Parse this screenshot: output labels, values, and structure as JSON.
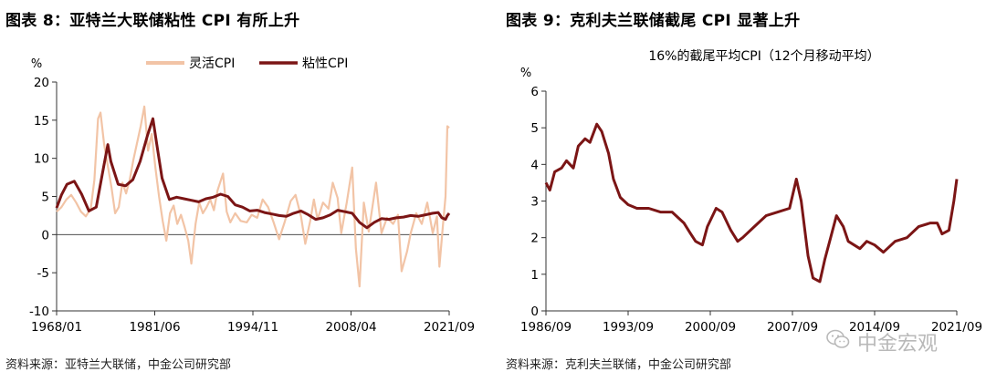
{
  "left": {
    "title": "图表 8：亚特兰大联储粘性 CPI 有所上升",
    "source": "资料来源：亚特兰大联储，中金公司研究部"
  },
  "right": {
    "title": "图表 9：克利夫兰联储截尾 CPI 显著上升",
    "source": "资料来源：克利夫兰联储，中金公司研究部"
  },
  "watermark": "中金宏观",
  "colors": {
    "flexible": "#f2c4a6",
    "sticky": "#7b1515",
    "trimmed": "#7b1515",
    "axis": "#333333"
  },
  "chart_data": [
    {
      "type": "line",
      "title": "",
      "ylabel": "%",
      "xlabel": "",
      "ylim": [
        -10,
        20
      ],
      "yticks": [
        "20",
        "15",
        "10",
        "5",
        "0",
        "-5",
        "-10"
      ],
      "xticks": [
        "1968/01",
        "1981/06",
        "1994/11",
        "2008/04",
        "2021/09"
      ],
      "x_range": [
        "1968/01",
        "2021/09"
      ],
      "legend_position": "top-center",
      "series": [
        {
          "name": "灵活CPI",
          "color": "#f2c4a6",
          "points": [
            [
              "1968/01",
              3.0
            ],
            [
              "1968/09",
              3.6
            ],
            [
              "1969/05",
              4.6
            ],
            [
              "1970/01",
              5.2
            ],
            [
              "1970/09",
              4.2
            ],
            [
              "1971/05",
              3.0
            ],
            [
              "1972/01",
              2.4
            ],
            [
              "1972/09",
              3.4
            ],
            [
              "1973/03",
              7.2
            ],
            [
              "1973/09",
              15.2
            ],
            [
              "1974/01",
              16.0
            ],
            [
              "1974/07",
              11.8
            ],
            [
              "1975/01",
              9.0
            ],
            [
              "1975/07",
              6.2
            ],
            [
              "1976/01",
              2.8
            ],
            [
              "1976/07",
              3.6
            ],
            [
              "1977/01",
              6.8
            ],
            [
              "1977/07",
              5.4
            ],
            [
              "1978/01",
              7.2
            ],
            [
              "1978/07",
              9.8
            ],
            [
              "1979/01",
              12.0
            ],
            [
              "1979/07",
              14.2
            ],
            [
              "1980/01",
              16.8
            ],
            [
              "1980/07",
              11.0
            ],
            [
              "1981/01",
              13.2
            ],
            [
              "1981/07",
              8.8
            ],
            [
              "1982/01",
              5.0
            ],
            [
              "1982/07",
              1.8
            ],
            [
              "1983/01",
              -0.8
            ],
            [
              "1983/07",
              2.8
            ],
            [
              "1984/01",
              3.8
            ],
            [
              "1984/07",
              1.4
            ],
            [
              "1985/01",
              2.6
            ],
            [
              "1985/07",
              1.0
            ],
            [
              "1986/01",
              -0.8
            ],
            [
              "1986/06",
              -3.8
            ],
            [
              "1987/01",
              1.4
            ],
            [
              "1987/07",
              4.2
            ],
            [
              "1988/01",
              2.8
            ],
            [
              "1988/07",
              3.6
            ],
            [
              "1989/01",
              4.6
            ],
            [
              "1989/07",
              3.2
            ],
            [
              "1990/01",
              5.8
            ],
            [
              "1990/10",
              8.0
            ],
            [
              "1991/04",
              3.0
            ],
            [
              "1991/10",
              1.6
            ],
            [
              "1992/06",
              2.8
            ],
            [
              "1993/03",
              1.8
            ],
            [
              "1994/01",
              1.6
            ],
            [
              "1994/09",
              2.6
            ],
            [
              "1995/06",
              2.2
            ],
            [
              "1996/03",
              4.6
            ],
            [
              "1996/12",
              3.6
            ],
            [
              "1997/09",
              1.6
            ],
            [
              "1998/06",
              -0.6
            ],
            [
              "1999/03",
              1.6
            ],
            [
              "2000/01",
              4.4
            ],
            [
              "2000/09",
              5.2
            ],
            [
              "2001/06",
              2.4
            ],
            [
              "2002/01",
              -1.2
            ],
            [
              "2002/09",
              1.8
            ],
            [
              "2003/03",
              4.6
            ],
            [
              "2003/09",
              2.0
            ],
            [
              "2004/06",
              4.2
            ],
            [
              "2005/03",
              3.4
            ],
            [
              "2005/10",
              6.8
            ],
            [
              "2006/06",
              4.8
            ],
            [
              "2006/12",
              0.2
            ],
            [
              "2007/09",
              4.2
            ],
            [
              "2008/06",
              8.8
            ],
            [
              "2008/12",
              -1.8
            ],
            [
              "2009/06",
              -6.8
            ],
            [
              "2010/01",
              4.2
            ],
            [
              "2010/09",
              0.4
            ],
            [
              "2011/09",
              6.8
            ],
            [
              "2012/06",
              0.2
            ],
            [
              "2013/03",
              2.2
            ],
            [
              "2014/01",
              1.4
            ],
            [
              "2014/09",
              2.6
            ],
            [
              "2015/03",
              -4.8
            ],
            [
              "2015/12",
              -2.2
            ],
            [
              "2016/06",
              0.2
            ],
            [
              "2017/03",
              2.8
            ],
            [
              "2017/12",
              1.4
            ],
            [
              "2018/09",
              4.2
            ],
            [
              "2019/06",
              0.2
            ],
            [
              "2020/01",
              2.4
            ],
            [
              "2020/05",
              -4.2
            ],
            [
              "2020/11",
              1.4
            ],
            [
              "2021/03",
              5.0
            ],
            [
              "2021/06",
              14.2
            ],
            [
              "2021/09",
              14.0
            ]
          ]
        },
        {
          "name": "粘性CPI",
          "color": "#7b1515",
          "points": [
            [
              "1968/01",
              3.5
            ],
            [
              "1968/09",
              5.2
            ],
            [
              "1969/06",
              6.6
            ],
            [
              "1970/06",
              7.0
            ],
            [
              "1971/06",
              5.3
            ],
            [
              "1972/06",
              3.1
            ],
            [
              "1973/06",
              3.6
            ],
            [
              "1974/06",
              8.8
            ],
            [
              "1975/01",
              11.8
            ],
            [
              "1975/06",
              9.6
            ],
            [
              "1976/06",
              6.6
            ],
            [
              "1977/06",
              6.4
            ],
            [
              "1978/06",
              7.2
            ],
            [
              "1979/06",
              9.6
            ],
            [
              "1980/06",
              13.0
            ],
            [
              "1981/03",
              15.2
            ],
            [
              "1981/09",
              12.0
            ],
            [
              "1982/06",
              7.4
            ],
            [
              "1983/06",
              4.6
            ],
            [
              "1984/06",
              4.9
            ],
            [
              "1985/06",
              4.7
            ],
            [
              "1986/06",
              4.5
            ],
            [
              "1987/06",
              4.3
            ],
            [
              "1988/06",
              4.7
            ],
            [
              "1989/06",
              4.9
            ],
            [
              "1990/06",
              5.3
            ],
            [
              "1991/06",
              5.0
            ],
            [
              "1992/06",
              3.9
            ],
            [
              "1993/06",
              3.6
            ],
            [
              "1994/06",
              3.1
            ],
            [
              "1995/06",
              3.2
            ],
            [
              "1996/06",
              2.9
            ],
            [
              "1997/06",
              2.7
            ],
            [
              "1998/06",
              2.5
            ],
            [
              "1999/06",
              2.4
            ],
            [
              "2000/06",
              2.8
            ],
            [
              "2001/06",
              3.1
            ],
            [
              "2002/06",
              2.6
            ],
            [
              "2003/06",
              2.0
            ],
            [
              "2004/06",
              2.2
            ],
            [
              "2005/06",
              2.6
            ],
            [
              "2006/06",
              3.2
            ],
            [
              "2007/06",
              3.0
            ],
            [
              "2008/06",
              2.8
            ],
            [
              "2009/06",
              1.6
            ],
            [
              "2010/06",
              0.9
            ],
            [
              "2011/06",
              1.6
            ],
            [
              "2012/06",
              2.1
            ],
            [
              "2013/06",
              2.0
            ],
            [
              "2014/06",
              2.2
            ],
            [
              "2015/06",
              2.3
            ],
            [
              "2016/06",
              2.5
            ],
            [
              "2017/06",
              2.4
            ],
            [
              "2018/06",
              2.6
            ],
            [
              "2019/06",
              2.8
            ],
            [
              "2020/03",
              2.9
            ],
            [
              "2020/09",
              2.2
            ],
            [
              "2021/03",
              2.0
            ],
            [
              "2021/06",
              2.5
            ],
            [
              "2021/09",
              2.8
            ]
          ]
        }
      ]
    },
    {
      "type": "line",
      "title": "16%的截尾平均CPI（12个月移动平均）",
      "ylabel": "%",
      "xlabel": "",
      "ylim": [
        0,
        6
      ],
      "yticks": [
        "6",
        "5",
        "4",
        "3",
        "2",
        "1",
        "0"
      ],
      "xticks": [
        "1986/09",
        "1993/09",
        "2000/09",
        "2007/09",
        "2014/09",
        "2021/09"
      ],
      "x_range": [
        "1986/09",
        "2021/09"
      ],
      "series": [
        {
          "name": "",
          "color": "#7b1515",
          "points": [
            [
              "1986/09",
              3.5
            ],
            [
              "1987/01",
              3.3
            ],
            [
              "1987/06",
              3.8
            ],
            [
              "1988/01",
              3.9
            ],
            [
              "1988/06",
              4.1
            ],
            [
              "1989/01",
              3.9
            ],
            [
              "1989/06",
              4.5
            ],
            [
              "1990/01",
              4.7
            ],
            [
              "1990/06",
              4.6
            ],
            [
              "1991/01",
              5.1
            ],
            [
              "1991/06",
              4.9
            ],
            [
              "1992/01",
              4.3
            ],
            [
              "1992/06",
              3.6
            ],
            [
              "1993/01",
              3.1
            ],
            [
              "1993/09",
              2.9
            ],
            [
              "1994/06",
              2.8
            ],
            [
              "1995/06",
              2.8
            ],
            [
              "1996/06",
              2.7
            ],
            [
              "1997/06",
              2.7
            ],
            [
              "1998/06",
              2.4
            ],
            [
              "1999/01",
              2.1
            ],
            [
              "1999/06",
              1.9
            ],
            [
              "2000/01",
              1.8
            ],
            [
              "2000/06",
              2.3
            ],
            [
              "2001/03",
              2.8
            ],
            [
              "2001/09",
              2.7
            ],
            [
              "2002/06",
              2.2
            ],
            [
              "2003/01",
              1.9
            ],
            [
              "2003/06",
              2.0
            ],
            [
              "2004/06",
              2.3
            ],
            [
              "2005/06",
              2.6
            ],
            [
              "2006/06",
              2.7
            ],
            [
              "2007/06",
              2.8
            ],
            [
              "2008/01",
              3.6
            ],
            [
              "2008/06",
              3.0
            ],
            [
              "2009/01",
              1.5
            ],
            [
              "2009/06",
              0.9
            ],
            [
              "2010/01",
              0.8
            ],
            [
              "2010/06",
              1.4
            ],
            [
              "2011/01",
              2.1
            ],
            [
              "2011/06",
              2.6
            ],
            [
              "2012/01",
              2.3
            ],
            [
              "2012/06",
              1.9
            ],
            [
              "2013/06",
              1.7
            ],
            [
              "2014/01",
              1.9
            ],
            [
              "2014/09",
              1.8
            ],
            [
              "2015/06",
              1.6
            ],
            [
              "2016/06",
              1.9
            ],
            [
              "2017/06",
              2.0
            ],
            [
              "2018/06",
              2.3
            ],
            [
              "2019/06",
              2.4
            ],
            [
              "2020/01",
              2.4
            ],
            [
              "2020/06",
              2.1
            ],
            [
              "2021/01",
              2.2
            ],
            [
              "2021/06",
              3.0
            ],
            [
              "2021/09",
              3.6
            ]
          ]
        }
      ]
    }
  ]
}
